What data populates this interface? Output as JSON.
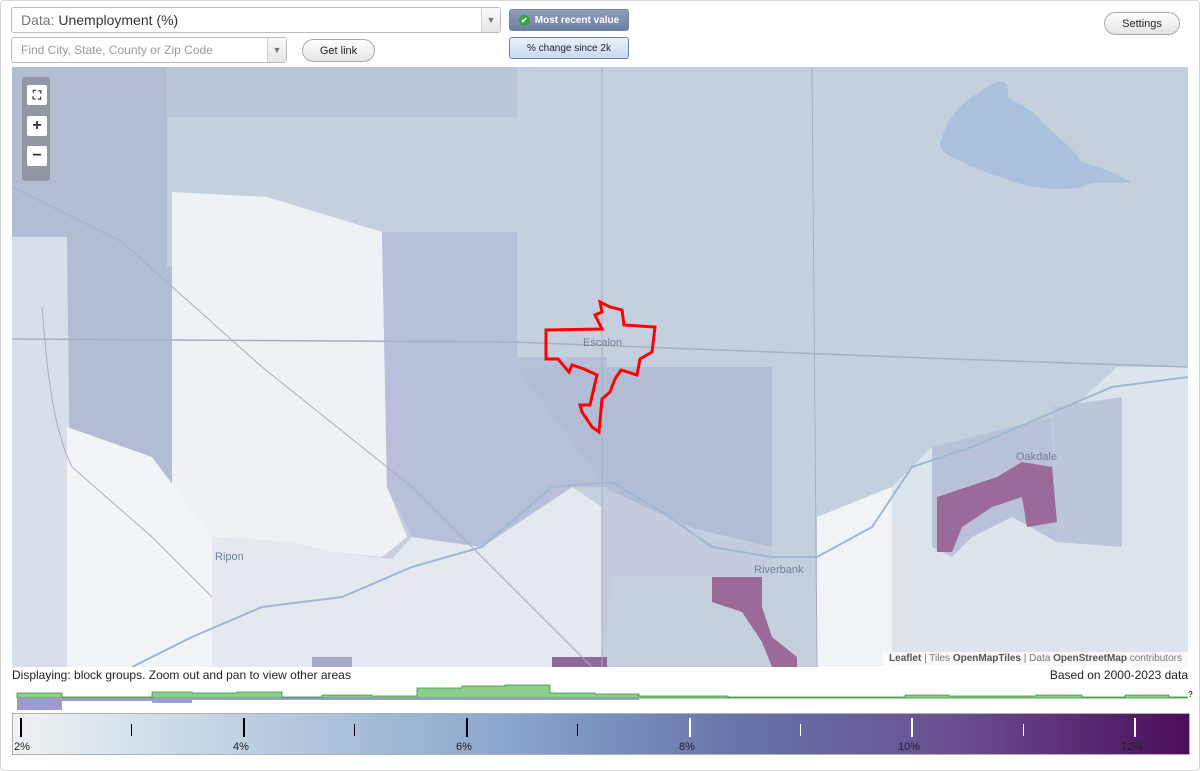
{
  "controls": {
    "data_select_prefix": "Data:",
    "data_select_value": "Unemployment (%)",
    "search_placeholder": "Find City, State, County or Zip Code",
    "get_link_label": "Get link",
    "settings_label": "Settings",
    "toggle_recent": "Most recent value",
    "toggle_change": "% change since 2k"
  },
  "map": {
    "places": [
      "Escalon",
      "Ripon",
      "Riverbank",
      "Oakdale"
    ],
    "attribution": {
      "leaflet": "Leaflet",
      "tiles_prefix": "Tiles",
      "tiles": "OpenMapTiles",
      "data_prefix": "Data",
      "osm": "OpenStreetMap",
      "contributors": "contributors"
    },
    "highlight_color": "#ff0000"
  },
  "status": {
    "displaying": "Displaying: block groups. Zoom out and pan to view other areas",
    "based_on": "Based on 2000-2023 data",
    "help": "?"
  },
  "legend": {
    "labels": [
      "2%",
      "4%",
      "6%",
      "8%",
      "10%",
      "12%"
    ],
    "min": 2,
    "max": 12.5
  },
  "colors": {
    "low": "#eef3f3",
    "mid": "#8aa6cc",
    "high": "#4b0d5a",
    "histogram_green": "#8ccf8c",
    "histogram_purple": "#9c9cd0"
  }
}
